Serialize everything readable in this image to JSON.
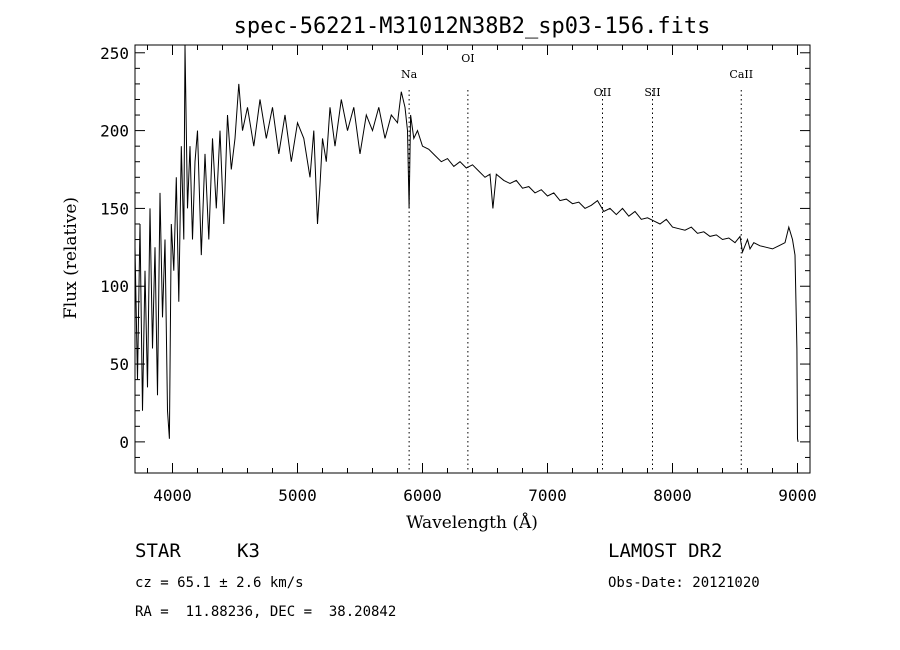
{
  "chart_data": {
    "type": "line",
    "title": "spec-56221-M31012N38B2_sp03-156.fits",
    "xlabel": "Wavelength (Å)",
    "ylabel": "Flux (relative)",
    "xlim": [
      3700,
      9100
    ],
    "ylim": [
      -20,
      255
    ],
    "xticks": [
      4000,
      5000,
      6000,
      7000,
      8000,
      9000
    ],
    "yticks": [
      0,
      50,
      100,
      150,
      200,
      250
    ],
    "line_color": "#000000",
    "grid": false,
    "series": [
      {
        "x": [
          3700,
          3720,
          3740,
          3760,
          3780,
          3800,
          3820,
          3840,
          3860,
          3880,
          3900,
          3920,
          3940,
          3960,
          3975,
          3990,
          4010,
          4030,
          4050,
          4070,
          4090,
          4100,
          4120,
          4140,
          4160,
          4180,
          4200,
          4230,
          4260,
          4290,
          4320,
          4350,
          4380,
          4410,
          4440,
          4470,
          4500,
          4530,
          4560,
          4600,
          4650,
          4700,
          4750,
          4800,
          4850,
          4900,
          4950,
          5000,
          5050,
          5100,
          5130,
          5160,
          5180,
          5200,
          5230,
          5260,
          5300,
          5350,
          5400,
          5450,
          5500,
          5550,
          5600,
          5650,
          5700,
          5750,
          5800,
          5830,
          5860,
          5880,
          5893,
          5905,
          5930,
          5960,
          6000,
          6050,
          6100,
          6150,
          6200,
          6250,
          6300,
          6350,
          6400,
          6450,
          6500,
          6540,
          6563,
          6590,
          6650,
          6700,
          6750,
          6800,
          6850,
          6900,
          6950,
          7000,
          7050,
          7100,
          7150,
          7200,
          7250,
          7300,
          7350,
          7400,
          7450,
          7500,
          7550,
          7600,
          7650,
          7700,
          7750,
          7800,
          7850,
          7900,
          7950,
          8000,
          8050,
          8100,
          8150,
          8200,
          8250,
          8300,
          8350,
          8400,
          8450,
          8500,
          8540,
          8560,
          8600,
          8620,
          8650,
          8700,
          8750,
          8800,
          8850,
          8900,
          8930,
          8960,
          8980,
          8995,
          9000,
          9005
        ],
        "y": [
          125,
          40,
          140,
          20,
          110,
          35,
          150,
          60,
          125,
          30,
          160,
          80,
          130,
          20,
          2,
          140,
          110,
          170,
          90,
          190,
          130,
          255,
          150,
          190,
          130,
          180,
          200,
          120,
          185,
          130,
          195,
          150,
          200,
          140,
          210,
          175,
          195,
          230,
          200,
          215,
          190,
          220,
          195,
          215,
          185,
          210,
          180,
          205,
          195,
          170,
          200,
          140,
          165,
          195,
          180,
          215,
          190,
          220,
          200,
          215,
          185,
          210,
          200,
          215,
          195,
          210,
          205,
          225,
          215,
          200,
          150,
          210,
          195,
          200,
          190,
          188,
          184,
          180,
          182,
          177,
          180,
          176,
          178,
          174,
          170,
          172,
          150,
          172,
          168,
          166,
          168,
          163,
          164,
          160,
          162,
          158,
          160,
          155,
          156,
          153,
          154,
          150,
          152,
          155,
          148,
          150,
          146,
          150,
          145,
          148,
          143,
          144,
          142,
          140,
          143,
          138,
          137,
          136,
          138,
          134,
          135,
          132,
          133,
          130,
          131,
          128,
          132,
          122,
          130,
          124,
          128,
          126,
          125,
          124,
          126,
          128,
          138,
          130,
          120,
          60,
          2,
          0
        ]
      }
    ],
    "line_markers": [
      {
        "label": "Na",
        "x": 5893
      },
      {
        "label": "OI",
        "x": 6363
      },
      {
        "label": "OII",
        "x": 7440
      },
      {
        "label": "SII",
        "x": 7840
      },
      {
        "label": "CaII",
        "x": 8550
      }
    ]
  },
  "info": {
    "object_type": "STAR",
    "subclass": "K3",
    "release": "LAMOST DR2",
    "redshift": "cz = 65.1 ± 2.6 km/s",
    "obs_date": "Obs-Date: 20121020",
    "coords": "RA =  11.88236, DEC =  38.20842"
  }
}
